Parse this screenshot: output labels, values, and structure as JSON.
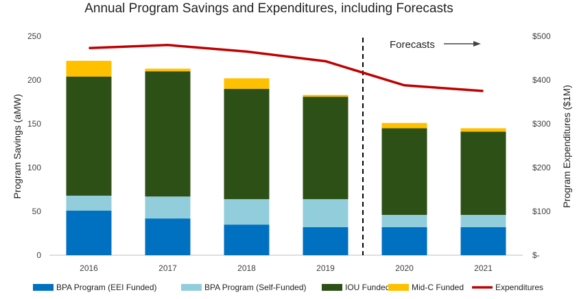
{
  "chart_data": {
    "type": "bar",
    "stacked": true,
    "title": "Annual Program Savings and Expenditures, including Forecasts",
    "categories": [
      "2016",
      "2017",
      "2018",
      "2019",
      "2020",
      "2021"
    ],
    "ylabel": "Program Savings (aMW)",
    "y2label": "Program Expenditures ($1M)",
    "ylim": [
      0,
      250
    ],
    "y2lim": [
      0,
      500
    ],
    "yticks": [
      "0",
      "50",
      "100",
      "150",
      "200",
      "250"
    ],
    "y2ticks": [
      "$-",
      "$100",
      "$200",
      "$300",
      "$400",
      "$500"
    ],
    "series": [
      {
        "name": "BPA Program (EEI Funded)",
        "color": "#0070C0",
        "values": [
          51,
          42,
          35,
          32,
          32,
          32
        ]
      },
      {
        "name": "BPA Program (Self-Funded)",
        "color": "#92CDDC",
        "values": [
          17,
          25,
          29,
          32,
          14,
          14
        ]
      },
      {
        "name": "IOU Funded",
        "color": "#2D5016",
        "values": [
          136,
          143,
          126,
          117,
          99,
          95
        ]
      },
      {
        "name": "Mid-C Funded",
        "color": "#FFC000",
        "values": [
          18,
          3,
          12,
          2,
          6,
          4
        ]
      }
    ],
    "line_series": {
      "name": "Expenditures",
      "color": "#C00000",
      "axis": "right",
      "values": [
        473,
        480,
        465,
        443,
        388,
        375
      ]
    },
    "annotation": {
      "text": "Forecasts",
      "arrow": "right",
      "divider_between": [
        "2019",
        "2020"
      ]
    },
    "legend_position": "bottom",
    "grid": false
  }
}
